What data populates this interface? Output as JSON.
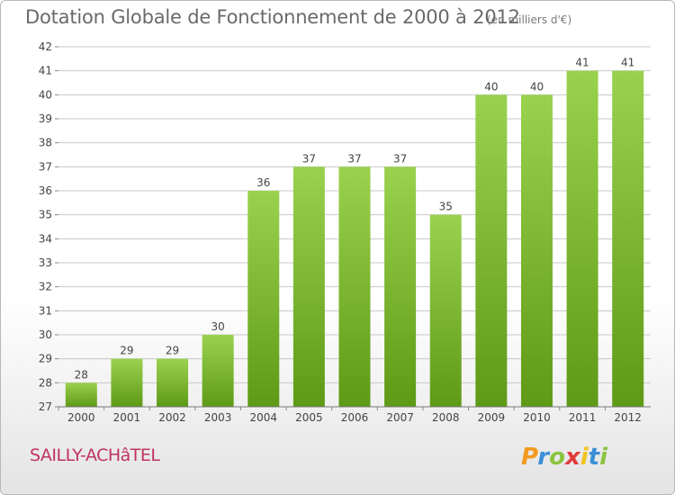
{
  "header": {
    "title": "Dotation Globale de Fonctionnement de 2000 à 2012",
    "unit": "(en milliers d'€)"
  },
  "footer": {
    "commune": "SAILLY-ACHâTEL",
    "logo_text": "Proxiti"
  },
  "colors": {
    "bar_top": "#9ad24f",
    "bar_bottom": "#5e9a16",
    "grid": "#c8c8c8",
    "axis_text": "#444444",
    "commune": "#c0335e"
  },
  "chart_data": {
    "type": "bar",
    "title": "Dotation Globale de Fonctionnement de 2000 à 2012",
    "subtitle": "(en milliers d'€)",
    "categories": [
      "2000",
      "2001",
      "2002",
      "2003",
      "2004",
      "2005",
      "2006",
      "2007",
      "2008",
      "2009",
      "2010",
      "2011",
      "2012"
    ],
    "values": [
      28,
      29,
      29,
      30,
      36,
      37,
      37,
      37,
      35,
      40,
      40,
      41,
      41
    ],
    "ylim": [
      27,
      42
    ],
    "yticks": [
      27,
      28,
      29,
      30,
      31,
      32,
      33,
      34,
      35,
      36,
      37,
      38,
      39,
      40,
      41,
      42
    ],
    "grid": true,
    "xlabel": "",
    "ylabel": ""
  }
}
